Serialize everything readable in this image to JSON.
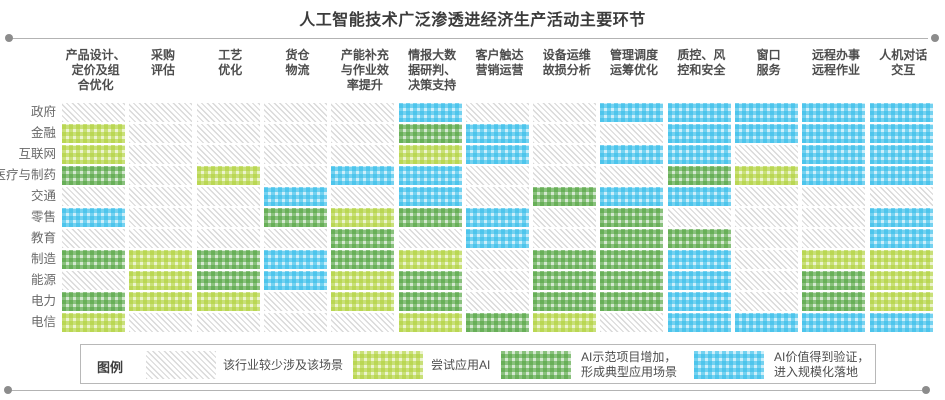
{
  "title": "人工智能技术广泛渗透进经济生产活动主要环节",
  "chart_data": {
    "type": "heatmap",
    "title": "人工智能技术广泛渗透进经济生产活动主要环节",
    "columns": [
      "产品设计、定价及组合优化",
      "采购评估",
      "工艺优化",
      "货仓物流",
      "产能补充与作业效率提升",
      "情报大数据研判、决策支持",
      "客户触达营销运营",
      "设备运维故损分析",
      "管理调度运筹优化",
      "质控、风控和安全",
      "窗口服务",
      "远程办事远程作业",
      "人机对话交互"
    ],
    "columns_display": [
      "产品设计、\n定价及组\n合优化",
      "采购\n评估",
      "工艺\n优化",
      "货仓\n物流",
      "产能补充\n与作业效\n率提升",
      "情报大数\n据研判、\n决策支持",
      "客户触达\n营销运营",
      "设备运维\n故损分析",
      "管理调度\n运筹优化",
      "质控、风\n控和安全",
      "窗口\n服务",
      "远程办事\n远程作业",
      "人机对话\n交互"
    ],
    "rows": [
      "政府",
      "金融",
      "互联网",
      "医疗与制药",
      "交通",
      "零售",
      "教育",
      "制造",
      "能源",
      "电力",
      "电信"
    ],
    "levels": [
      {
        "value": 0,
        "label": "该行业较少涉及该场景",
        "color": "#d9d9d9",
        "pattern": "diagonal-hatch"
      },
      {
        "value": 1,
        "label": "尝试应用AI",
        "color": "#aed036",
        "pattern": "gingham"
      },
      {
        "value": 2,
        "label": "AI示范项目增加，形成典型应用场景",
        "color": "#4fa23c",
        "pattern": "gingham"
      },
      {
        "value": 3,
        "label": "AI价值得到验证，进入规模化落地",
        "color": "#2fbbe9",
        "pattern": "gingham"
      }
    ],
    "values": [
      [
        0,
        0,
        0,
        0,
        0,
        3,
        0,
        0,
        3,
        3,
        3,
        3,
        3
      ],
      [
        1,
        0,
        0,
        0,
        0,
        2,
        3,
        0,
        0,
        3,
        3,
        3,
        3
      ],
      [
        1,
        0,
        0,
        0,
        0,
        1,
        3,
        0,
        3,
        3,
        0,
        3,
        3
      ],
      [
        2,
        0,
        1,
        0,
        3,
        3,
        0,
        0,
        0,
        2,
        1,
        3,
        3
      ],
      [
        0,
        0,
        0,
        3,
        0,
        3,
        0,
        2,
        3,
        3,
        0,
        0,
        0
      ],
      [
        3,
        0,
        0,
        2,
        1,
        2,
        3,
        0,
        2,
        0,
        0,
        0,
        3
      ],
      [
        0,
        0,
        0,
        0,
        2,
        0,
        3,
        0,
        2,
        2,
        0,
        0,
        3
      ],
      [
        2,
        1,
        2,
        3,
        2,
        1,
        0,
        2,
        2,
        3,
        0,
        1,
        1
      ],
      [
        0,
        1,
        2,
        3,
        1,
        2,
        0,
        2,
        2,
        3,
        0,
        2,
        1
      ],
      [
        2,
        1,
        1,
        0,
        1,
        2,
        0,
        2,
        2,
        3,
        0,
        2,
        1
      ],
      [
        1,
        0,
        0,
        0,
        0,
        1,
        2,
        1,
        0,
        3,
        3,
        3,
        3
      ]
    ],
    "legend_position": "bottom",
    "grid": "off"
  },
  "legend": {
    "title": "图例",
    "items": [
      {
        "level": 0,
        "label": "该行业较少涉及该场景"
      },
      {
        "level": 1,
        "label": "尝试应用AI"
      },
      {
        "level": 2,
        "label": "AI示范项目增加，\n形成典型应用场景"
      },
      {
        "level": 3,
        "label": "AI价值得到验证，\n进入规模化落地"
      }
    ]
  }
}
